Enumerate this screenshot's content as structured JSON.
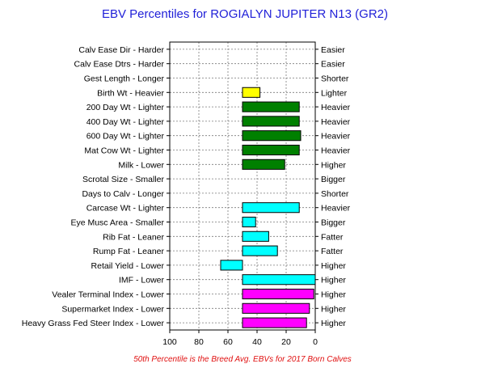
{
  "chart_data": {
    "type": "bar",
    "orientation": "horizontal",
    "title": "EBV Percentiles for ROGIALYN JUPITER N13 (GR2)",
    "footnote": "50th Percentile is the Breed Avg. EBVs for 2017 Born Calves",
    "xlim": [
      100,
      0
    ],
    "x_ticks": [
      100,
      80,
      60,
      40,
      20,
      0
    ],
    "grid": true,
    "baseline": 50,
    "categories": [
      "Calv Ease Dir - Harder",
      "Calv Ease Dtrs - Harder",
      "Gest Length - Longer",
      "Birth Wt - Heavier",
      "200 Day Wt - Lighter",
      "400 Day Wt - Lighter",
      "600 Day Wt - Lighter",
      "Mat Cow Wt - Lighter",
      "Milk - Lower",
      "Scrotal Size - Smaller",
      "Days to Calv - Longer",
      "Carcase Wt - Lighter",
      "Eye Musc Area - Smaller",
      "Rib Fat - Leaner",
      "Rump Fat - Leaner",
      "Retail Yield - Lower",
      "IMF - Lower",
      "Vealer Terminal Index - Lower",
      "Supermarket Index - Lower",
      "Heavy Grass Fed Steer Index - Lower"
    ],
    "right_labels": [
      "Easier",
      "Easier",
      "Shorter",
      "Lighter",
      "Heavier",
      "Heavier",
      "Heavier",
      "Heavier",
      "Higher",
      "Bigger",
      "Shorter",
      "Heavier",
      "Bigger",
      "Fatter",
      "Fatter",
      "Higher",
      "Higher",
      "Higher",
      "Higher",
      "Higher"
    ],
    "values": [
      null,
      null,
      null,
      38,
      11,
      11,
      10,
      11,
      21,
      null,
      null,
      11,
      41,
      32,
      26,
      65,
      0,
      1,
      4,
      6
    ],
    "colors": [
      "#008000",
      "#008000",
      "#008000",
      "#ffff00",
      "#008000",
      "#008000",
      "#008000",
      "#008000",
      "#008000",
      "#008000",
      "#008000",
      "#00ffff",
      "#00ffff",
      "#00ffff",
      "#00ffff",
      "#00ffff",
      "#00ffff",
      "#ff00ff",
      "#ff00ff",
      "#ff00ff"
    ]
  }
}
